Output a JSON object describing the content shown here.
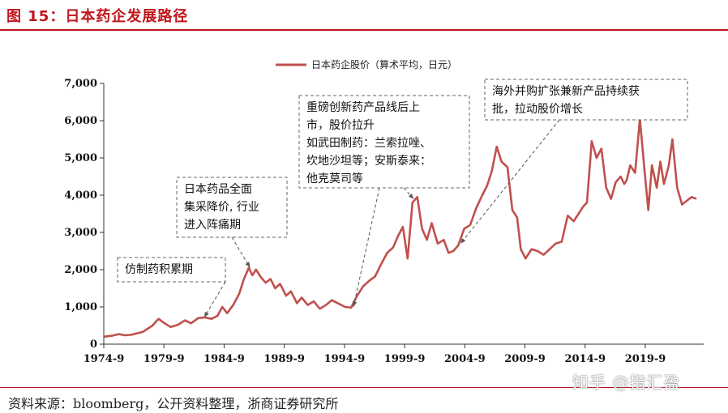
{
  "figure_title": "图 15：日本药企发展路径",
  "source": "资料来源：bloomberg，公开资料整理，浙商证券研究所",
  "watermark": "知乎 @指汇盈",
  "colors": {
    "accent": "#c0141c",
    "series": "#c0504d"
  },
  "chart_data": {
    "type": "line",
    "title": "",
    "xlabel": "",
    "ylabel": "",
    "legend": "top-center",
    "ylim": [
      0,
      7000
    ],
    "xlim": [
      1974.75,
      2024.6
    ],
    "y_ticks": [
      "0",
      "1,000",
      "2,000",
      "3,000",
      "4,000",
      "5,000",
      "6,000",
      "7,000"
    ],
    "y_tick_values": [
      0,
      1000,
      2000,
      3000,
      4000,
      5000,
      6000,
      7000
    ],
    "x_ticks": [
      "1974-9",
      "1979-9",
      "1984-9",
      "1989-9",
      "1994-9",
      "1999-9",
      "2004-9",
      "2009-9",
      "2014-9",
      "2019-9"
    ],
    "x_tick_values": [
      1974.75,
      1979.75,
      1984.75,
      1989.75,
      1994.75,
      1999.75,
      2004.75,
      2009.75,
      2014.75,
      2019.75
    ],
    "series": [
      {
        "name": "日本药企股价（算术平均，日元）",
        "x": [
          1974.75,
          1975.5,
          1976.0,
          1976.5,
          1977.0,
          1977.5,
          1978.0,
          1978.8,
          1979.3,
          1979.8,
          1980.3,
          1980.9,
          1981.5,
          1982.0,
          1982.6,
          1983.1,
          1983.7,
          1984.2,
          1984.6,
          1985.0,
          1985.5,
          1986.0,
          1986.4,
          1986.8,
          1987.1,
          1987.4,
          1987.8,
          1988.2,
          1988.6,
          1989.0,
          1989.4,
          1989.9,
          1990.3,
          1990.8,
          1991.2,
          1991.7,
          1992.2,
          1992.7,
          1993.2,
          1993.7,
          1994.2,
          1994.8,
          1995.3,
          1995.8,
          1996.3,
          1996.8,
          1997.3,
          1997.8,
          1998.3,
          1998.8,
          1999.2,
          1999.6,
          2000.0,
          2000.4,
          2000.8,
          2001.2,
          2001.6,
          2002.0,
          2002.5,
          2003.0,
          2003.4,
          2003.8,
          2004.2,
          2004.7,
          2005.2,
          2005.7,
          2006.2,
          2006.6,
          2007.0,
          2007.4,
          2007.8,
          2008.3,
          2008.7,
          2009.1,
          2009.4,
          2009.8,
          2010.3,
          2010.8,
          2011.3,
          2011.8,
          2012.3,
          2012.8,
          2013.3,
          2013.8,
          2014.2,
          2014.6,
          2014.9,
          2015.3,
          2015.7,
          2016.1,
          2016.5,
          2016.9,
          2017.3,
          2017.7,
          2018.0,
          2018.2,
          2018.5,
          2018.9,
          2019.3,
          2019.7,
          2020.0,
          2020.3,
          2020.7,
          2021.0,
          2021.3,
          2021.7,
          2022.0,
          2022.4,
          2022.8,
          2023.2,
          2023.6,
          2024.0
        ],
        "values": [
          200,
          230,
          270,
          240,
          250,
          290,
          330,
          500,
          680,
          560,
          460,
          520,
          640,
          560,
          700,
          720,
          680,
          760,
          1000,
          830,
          1050,
          1350,
          1750,
          2050,
          1850,
          2000,
          1800,
          1650,
          1750,
          1500,
          1620,
          1300,
          1420,
          1100,
          1250,
          1050,
          1150,
          950,
          1050,
          1180,
          1100,
          1000,
          980,
          1300,
          1550,
          1700,
          1820,
          2150,
          2450,
          2600,
          2900,
          3150,
          2300,
          3800,
          3950,
          3100,
          2800,
          3250,
          2700,
          2800,
          2450,
          2500,
          2650,
          3100,
          3200,
          3650,
          4000,
          4250,
          4650,
          5300,
          4900,
          4750,
          3600,
          3400,
          2550,
          2300,
          2550,
          2500,
          2400,
          2550,
          2700,
          2750,
          3450,
          3300,
          3500,
          3700,
          3800,
          5450,
          5000,
          5250,
          4200,
          3900,
          4350,
          4500,
          4300,
          4400,
          4800,
          4600,
          6050,
          4600,
          3600,
          4800,
          4200,
          4900,
          4300,
          4800,
          5500,
          4200,
          3750,
          3850,
          3950,
          3900
        ]
      }
    ],
    "annotations": [
      {
        "lines": [
          "仿制药积累期"
        ],
        "target_x": 1983.1,
        "target_y": 720
      },
      {
        "lines": [
          "日本药品全面",
          "集采降价, 行业",
          "进入阵痛期"
        ],
        "target_x": 1986.9,
        "target_y": 2060
      },
      {
        "lines": [
          "重磅创新药产品线后上",
          "市，股价拉升",
          "如武田制药：兰索拉唑、",
          "坎地沙坦等；安斯泰来：",
          "他克莫司等"
        ],
        "target_x": 1995.5,
        "target_y": 1000,
        "target2_x": 2000.5,
        "target2_y": 3900
      },
      {
        "lines": [
          "海外并购扩张兼新产品持续获",
          "批，拉动股价增长"
        ],
        "target_x": 2004.4,
        "target_y": 2700
      }
    ]
  }
}
